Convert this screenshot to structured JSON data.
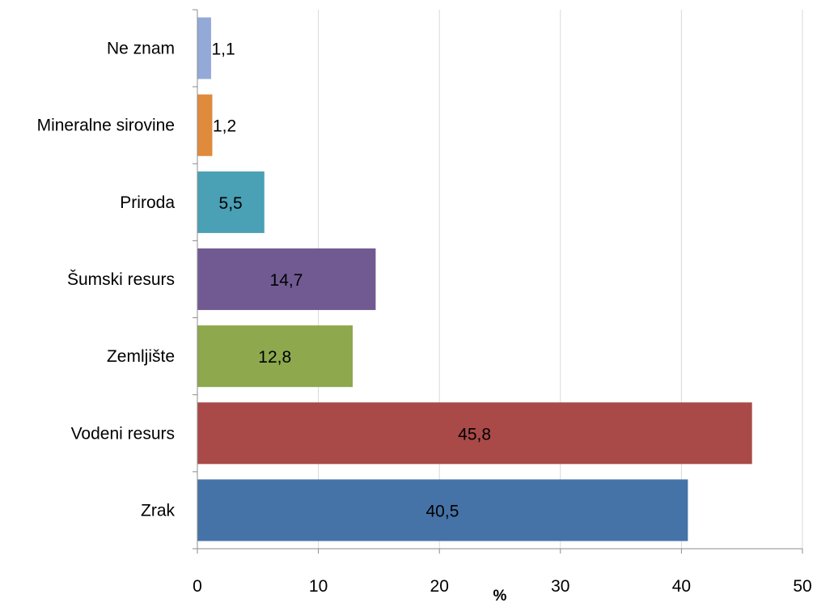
{
  "chart_data": {
    "type": "bar",
    "orientation": "horizontal",
    "categories": [
      "Ne znam",
      "Mineralne sirovine",
      "Priroda",
      "Šumski resurs",
      "Zemljište",
      "Vodeni resurs",
      "Zrak"
    ],
    "values": [
      1.1,
      1.2,
      5.5,
      14.7,
      12.8,
      45.8,
      40.5
    ],
    "value_labels": [
      "1,1",
      "1,2",
      "5,5",
      "14,7",
      "12,8",
      "45,8",
      "40,5"
    ],
    "bar_colors": [
      "#93a9d8",
      "#e08a3c",
      "#4aa0b4",
      "#715a92",
      "#8da84d",
      "#a94a48",
      "#4573a7"
    ],
    "xlabel": "%",
    "ylabel": "",
    "title": "",
    "xlim": [
      0,
      50
    ],
    "x_ticks": [
      0,
      10,
      20,
      30,
      40,
      50
    ],
    "x_tick_labels": [
      "0",
      "10",
      "20",
      "30",
      "40",
      "50"
    ],
    "grid": "vertical gridlines",
    "legend": "none"
  }
}
